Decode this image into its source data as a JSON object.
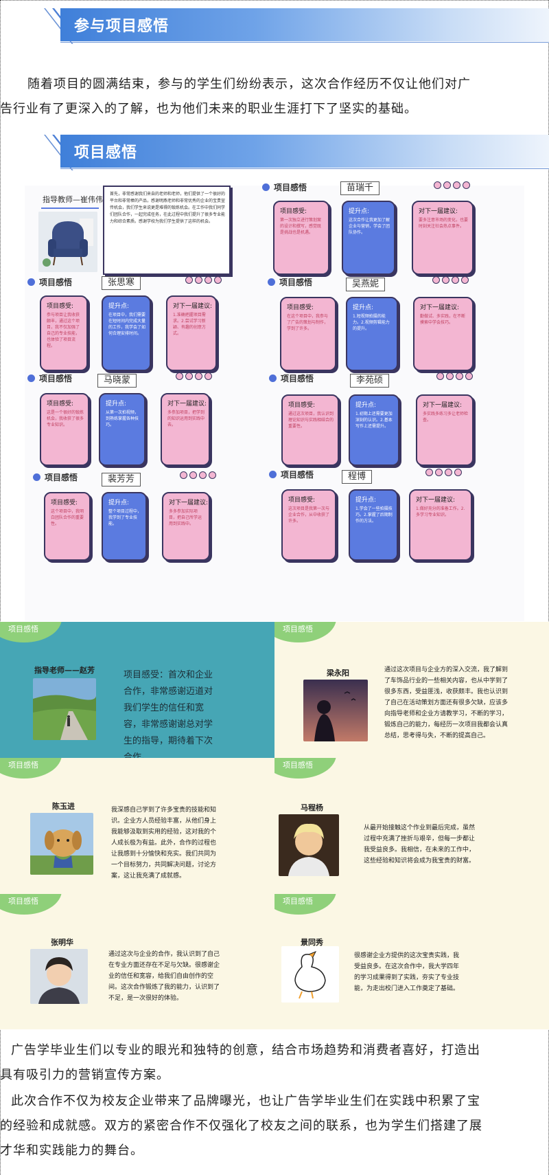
{
  "sections": [
    {
      "title": "参与项目感悟"
    },
    {
      "title": "项目感悟"
    }
  ],
  "intro": {
    "line1": "随着项目的圆满结束，参与的学生们纷纷表示，这次合作经历不仅让他们对广",
    "line2": "告行业有了更深入的了解，也为他们未来的职业生涯打下了坚实的基础。"
  },
  "poster": {
    "teacher_label": "指导教师—崔伟伟",
    "teacher_text": "首先，非常感谢我们来自的老师和老师，他们提供了一个很好的平台和非常棒的产品，感谢明燕老师和非常优秀的企业的宝贵宣传机会，我们学生来说更是难得的锻炼机会。在工作中我们同学们团队合作，一起完成任务，在此过程中我们提升了很多专业能力和综合素质。感谢学校为我们学生提供了这样的机会。",
    "tag": "项目感悟",
    "card_titles": {
      "feel": "项目感受:",
      "gain": "提升点:",
      "advice": "对下一届建议:"
    },
    "students": [
      {
        "name": "苗瑞千",
        "feel": "第一次独立进行策划案的设计和撰写，感觉既是挑战也是机遇。",
        "gain": "这次合作让我更加了解企业与营销，学会了团队协作。",
        "advice": "要多注意市场的变化，也要时刻关注社会热点事件。"
      },
      {
        "name": "张思寒",
        "feel": "参与项目让我收获颇丰，通过这个项目，我不仅加强了自己的专业技能，也体验了项目流程。",
        "gain": "在项目中，我们需要在短时间内完成大量的工作，我学会了如何合理安排时间。",
        "advice": "1.准确把握项目需求。2.尝试学习新颖、有趣的创意方式。"
      },
      {
        "name": "吴燕妮",
        "feel": "在这个项目中，我参与了广告的策划与制作，学到了许多。",
        "gain": "1.短视频拍摄的能力。2.视频剪辑能力的提升。",
        "advice": "勤做试、多实践，在不断摸索中学会技巧。"
      },
      {
        "name": "马晓蒙",
        "feel": "这是一个很好的锻炼机会，我收获了很多专业知识。",
        "gain": "从第一次拍视频，到熟练掌握各种技巧。",
        "advice": "多参加项目，把学到的知识运用到实践中去。"
      },
      {
        "name": "李苑硕",
        "feel": "通过这次项目，我认识到理论知识与实践相结合的重要性。",
        "gain": "1.初期上还需要更加深刻的认识。2.基本写作上还需提升。",
        "advice": "多实践多练习多让老师检查。"
      },
      {
        "name": "裴芳芳",
        "feel": "这个项目中，我明白团队合作的重要性。",
        "gain": "整个项目过程中，我学到了专业技能。",
        "advice": "多多参加实际项目，把自己所学运用到实践中。"
      },
      {
        "name": "程博",
        "feel": "这次项目是我第一次与企业合作，从中收获了许多。",
        "gain": "1.学会了一些拍摄技巧。2.掌握了后期制作的方法。",
        "advice": "1.做好充分的准备工作。2.多学习专业知识。"
      }
    ]
  },
  "gallery": {
    "arc_label": "项目感悟",
    "people": [
      {
        "name": "指导老师——赵芳",
        "text": "项目感受：首次和企业合作，非常感谢迈道对我们学生的信任和宽容，非常感谢谢总对学生的指导，期待着下次合作。"
      },
      {
        "name": "梁永阳",
        "text": "通过这次项目与企业方的深入交流，我了解到了车饰品行业的一些相关内容，也从中学到了很多东西，受益匪浅，收获颇丰。我也认识到了自己在活动策划方面还有很多欠缺，应该多向指导老师和企业方请教学习，不断的学习，锻炼自己的能力，每经历一次项目我都会认真总结，思考得与失，不断的提高自己。"
      },
      {
        "name": "陈玉进",
        "text": "我深感自己学到了许多宝贵的技能和知识。企业方人员经验丰富，从他们身上我能够汲取到实用的经验，这对我的个人成长极为有益。此外，合作的过程也让我感到十分愉快和充实。我们共同为一个目标努力，共同解决问题，讨论方案，这让我充满了成就感。"
      },
      {
        "name": "马程杨",
        "text": "从最开始接触这个作业到最后完成，虽然过程中充满了挫折与艰辛，但每一步都让我受益良多。我相信，在未来的工作中，这些经验和知识将会成为我宝贵的财富。"
      },
      {
        "name": "张明华",
        "text": "通过这次与企业的合作，我认识到了自己在专业方面还存在不足与欠缺。很感谢企业的信任和宽容，给我们自由创作的空间。这次合作锻炼了我的能力，认识到了不足，是一次很好的体验。"
      },
      {
        "name": "景同秀",
        "text": "很感谢企业方提供的这次宝贵实践，我受益良多。在这次合作中，我大学四年的学习成果得到了实践，夯实了专业技能，为走出校门进入工作奠定了基础。"
      }
    ]
  },
  "outro": {
    "p1_line1": "广告学毕业生们以专业的眼光和独特的创意，结合市场趋势和消费者喜好，打造出",
    "p1_line2": "具有吸引力的营销宣传方案。",
    "p2_line1": "此次合作不仅为校友企业带来了品牌曝光，也让广告学毕业生们在实践中积累了宝",
    "p2_line2": "的经验和成就感。双方的紧密合作不仅强化了校友之间的联系，也为学生们搭建了展",
    "p2_line3": "才华和实践能力的舞台。"
  },
  "colors": {
    "accent": "#3f7fd9",
    "pink": "#f3b6d2",
    "blue": "#5b7be0",
    "teal": "#46a6b5",
    "cream": "#fbf7e4",
    "green": "#8fd07a"
  }
}
